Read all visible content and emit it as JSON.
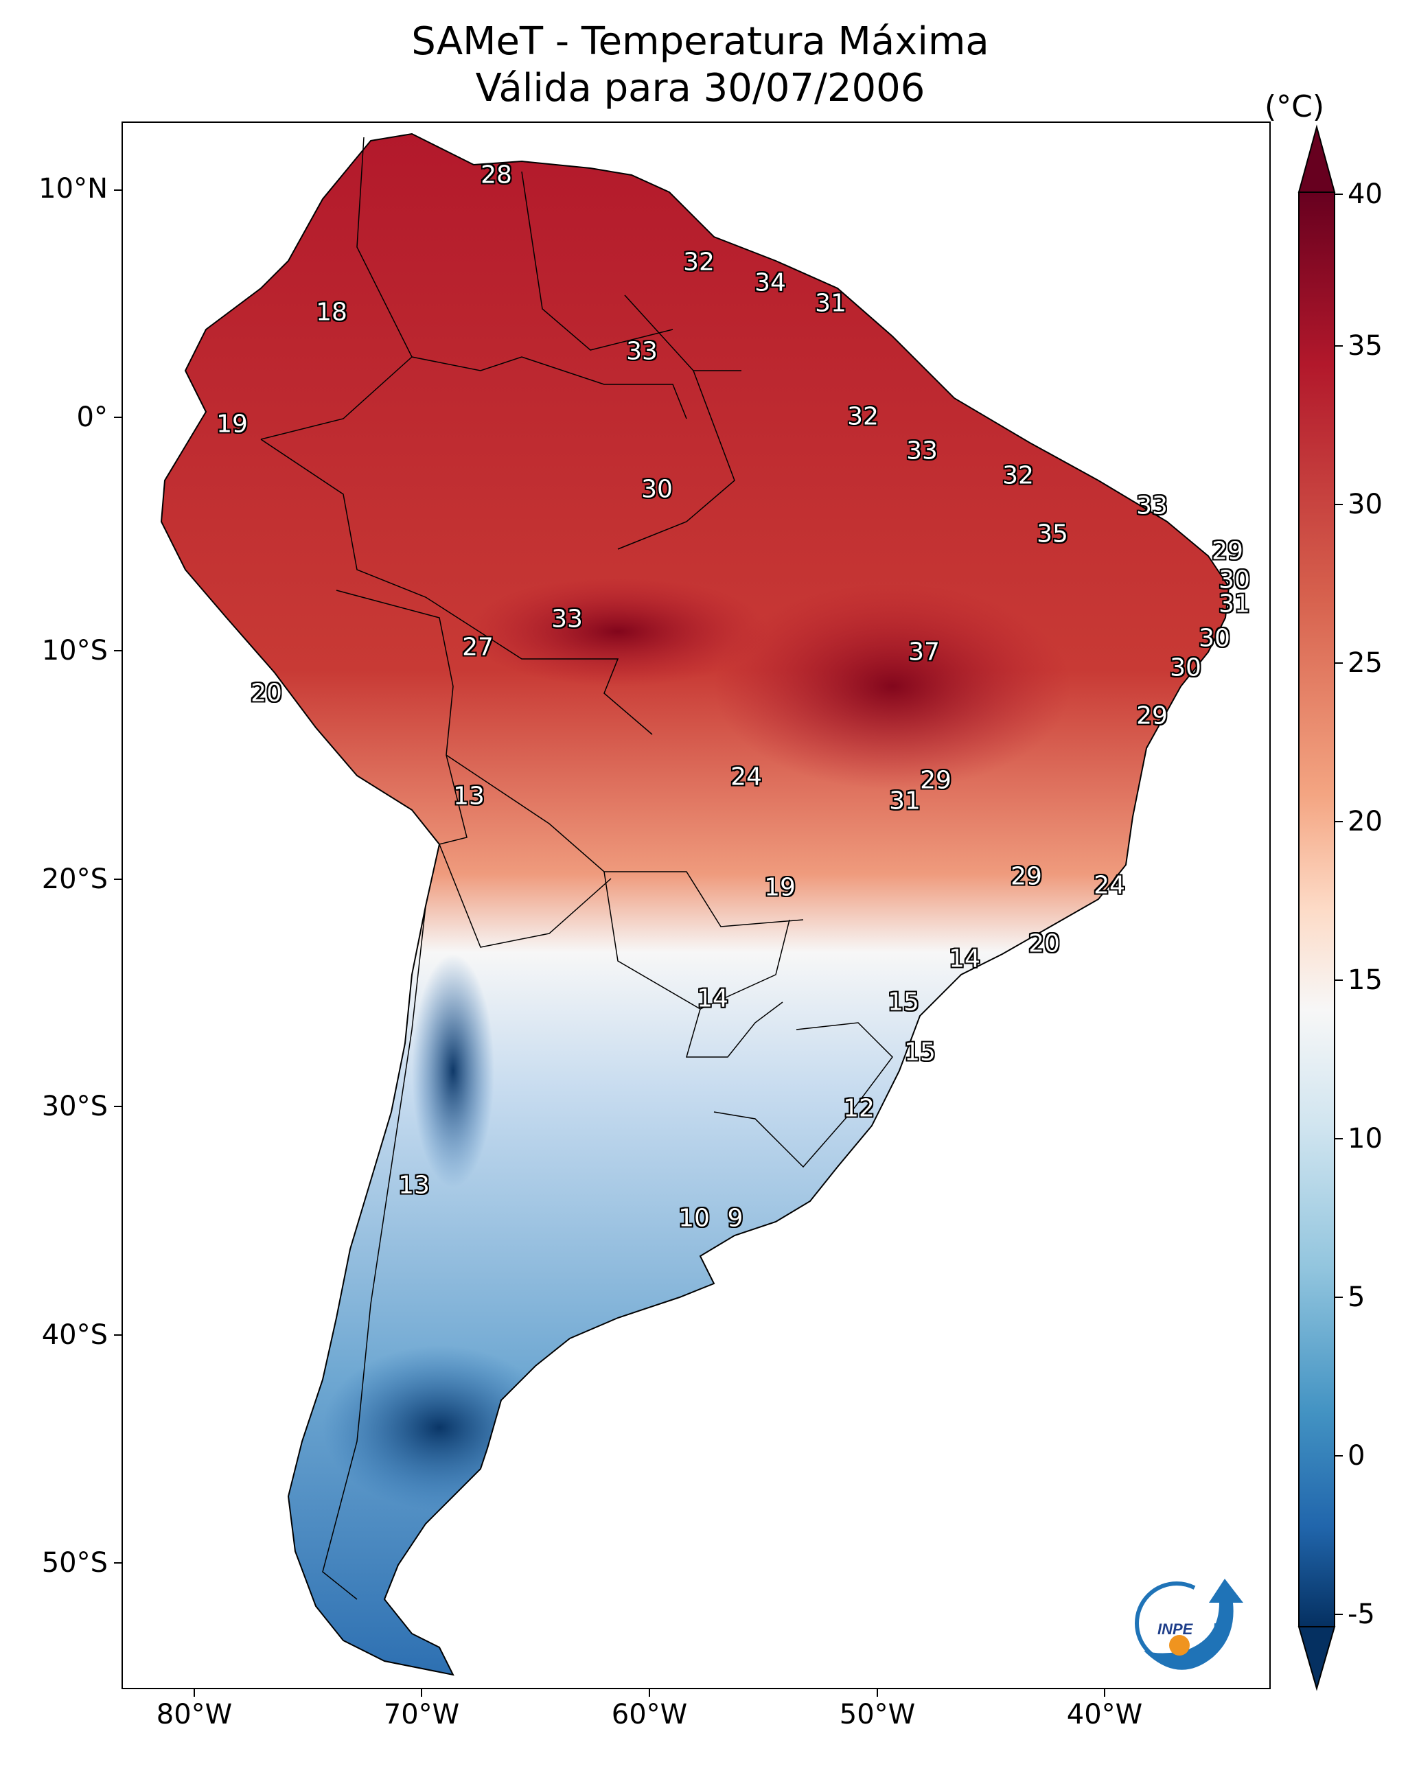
{
  "title": {
    "line1": "SAMeT - Temperatura Máxima",
    "line2": "Válida para 30/07/2006"
  },
  "map": {
    "lat_labels": [
      "10°N",
      "0°",
      "10°S",
      "20°S",
      "30°S",
      "40°S",
      "50°S"
    ],
    "lon_labels": [
      "80°W",
      "70°W",
      "60°W",
      "50°W",
      "40°W"
    ],
    "values": [
      {
        "label": "28"
      },
      {
        "label": "18"
      },
      {
        "label": "32"
      },
      {
        "label": "34"
      },
      {
        "label": "31"
      },
      {
        "label": "33"
      },
      {
        "label": "19"
      },
      {
        "label": "32"
      },
      {
        "label": "33"
      },
      {
        "label": "30"
      },
      {
        "label": "32"
      },
      {
        "label": "33"
      },
      {
        "label": "35"
      },
      {
        "label": "29"
      },
      {
        "label": "30"
      },
      {
        "label": "31"
      },
      {
        "label": "33"
      },
      {
        "label": "27"
      },
      {
        "label": "37"
      },
      {
        "label": "30"
      },
      {
        "label": "30"
      },
      {
        "label": "20"
      },
      {
        "label": "29"
      },
      {
        "label": "13"
      },
      {
        "label": "24"
      },
      {
        "label": "29"
      },
      {
        "label": "31"
      },
      {
        "label": "19"
      },
      {
        "label": "29"
      },
      {
        "label": "24"
      },
      {
        "label": "20"
      },
      {
        "label": "14"
      },
      {
        "label": "14"
      },
      {
        "label": "15"
      },
      {
        "label": "15"
      },
      {
        "label": "12"
      },
      {
        "label": "13"
      },
      {
        "label": "10"
      },
      {
        "label": "9"
      }
    ]
  },
  "colorbar": {
    "unit": "(°C)",
    "ticks": [
      "40",
      "35",
      "30",
      "25",
      "20",
      "15",
      "10",
      "5",
      "0",
      "-5"
    ],
    "colors": [
      "#67001f",
      "#b2182b",
      "#d6604d",
      "#f4a582",
      "#fddbc7",
      "#f7f7f7",
      "#d1e5f0",
      "#92c5de",
      "#4393c3",
      "#2166ac",
      "#053061"
    ]
  },
  "logo": {
    "text": "INPE"
  }
}
